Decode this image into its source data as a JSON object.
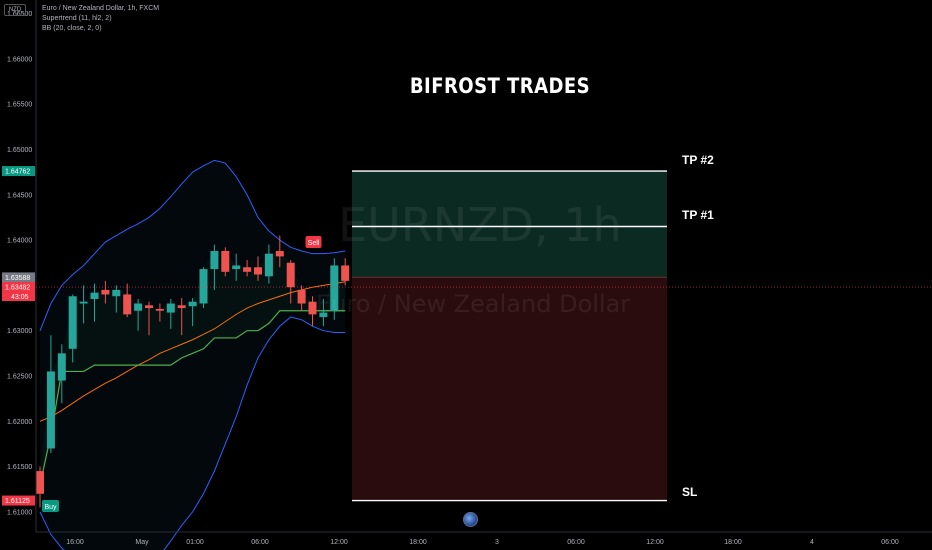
{
  "symbol_legend": {
    "title": "Euro / New Zealand Dollar, 1h, FXCM",
    "indicator1": "Supertrend (11, hl2, 2)",
    "indicator2": "BB (20, close, 2, 0)",
    "currency": "NZD"
  },
  "overlay": {
    "title": "BIFROST TRADES",
    "tp2_label": "TP #2",
    "tp1_label": "TP #1",
    "sl_label": "SL",
    "sell_label": "Sell",
    "buy_label": "Buy",
    "watermark_symbol": "EURNZD, 1h",
    "watermark_name": "Euro / New Zealand Dollar"
  },
  "colors": {
    "background": "#000000",
    "up_candle": "#26a69a",
    "down_candle": "#ef5350",
    "bollinger": "#2962ff",
    "bb_basis": "#ff6d00",
    "supertrend": "#4caf50",
    "target_zone": "#0b2a22",
    "stop_zone": "#2a0c0f"
  },
  "chart_data": {
    "type": "candlestick",
    "title": "Euro / New Zealand Dollar, 1h, FXCM",
    "ylim": [
      1.608,
      1.6665
    ],
    "y_ticks": [
      "1.66500",
      "1.66000",
      "1.65500",
      "1.65000",
      "1.64500",
      "1.64000",
      "1.63500",
      "1.63000",
      "1.62500",
      "1.62000",
      "1.61500",
      "1.61000"
    ],
    "x_ticks": [
      "16:00",
      "May",
      "01:00",
      "06:00",
      "12:00",
      "18:00",
      "3",
      "06:00",
      "12:00",
      "18:00",
      "4",
      "06:00"
    ],
    "price_labels": [
      {
        "value": 1.64762,
        "text": "1.64762",
        "color": "#089981"
      },
      {
        "value": 1.63588,
        "text": "1.63588",
        "color": "#787b86"
      },
      {
        "value": 1.63482,
        "text": "1.63482",
        "color": "#f23645"
      },
      {
        "value": 1.61125,
        "text": "1.61125",
        "color": "#f23645"
      }
    ],
    "countdown": "43:05",
    "candles": [
      {
        "o": 1.6145,
        "h": 1.615,
        "l": 1.6105,
        "c": 1.612
      },
      {
        "o": 1.617,
        "h": 1.6295,
        "l": 1.6165,
        "c": 1.6255
      },
      {
        "o": 1.6245,
        "h": 1.6285,
        "l": 1.622,
        "c": 1.6275
      },
      {
        "o": 1.628,
        "h": 1.634,
        "l": 1.6265,
        "c": 1.6338
      },
      {
        "o": 1.633,
        "h": 1.635,
        "l": 1.6308,
        "c": 1.6332
      },
      {
        "o": 1.6335,
        "h": 1.6352,
        "l": 1.631,
        "c": 1.6342
      },
      {
        "o": 1.6345,
        "h": 1.6355,
        "l": 1.633,
        "c": 1.634
      },
      {
        "o": 1.6338,
        "h": 1.635,
        "l": 1.632,
        "c": 1.6345
      },
      {
        "o": 1.634,
        "h": 1.6352,
        "l": 1.6315,
        "c": 1.6318
      },
      {
        "o": 1.6322,
        "h": 1.6335,
        "l": 1.63,
        "c": 1.633
      },
      {
        "o": 1.6328,
        "h": 1.6332,
        "l": 1.6295,
        "c": 1.6325
      },
      {
        "o": 1.6324,
        "h": 1.633,
        "l": 1.631,
        "c": 1.6322
      },
      {
        "o": 1.632,
        "h": 1.6335,
        "l": 1.6302,
        "c": 1.633
      },
      {
        "o": 1.6328,
        "h": 1.6336,
        "l": 1.6295,
        "c": 1.6325
      },
      {
        "o": 1.6327,
        "h": 1.6336,
        "l": 1.6305,
        "c": 1.6332
      },
      {
        "o": 1.633,
        "h": 1.637,
        "l": 1.6325,
        "c": 1.6368
      },
      {
        "o": 1.6368,
        "h": 1.6395,
        "l": 1.6345,
        "c": 1.6388
      },
      {
        "o": 1.6388,
        "h": 1.6392,
        "l": 1.636,
        "c": 1.6365
      },
      {
        "o": 1.6368,
        "h": 1.6385,
        "l": 1.6355,
        "c": 1.6372
      },
      {
        "o": 1.637,
        "h": 1.6378,
        "l": 1.636,
        "c": 1.6365
      },
      {
        "o": 1.637,
        "h": 1.6382,
        "l": 1.6355,
        "c": 1.6362
      },
      {
        "o": 1.636,
        "h": 1.6395,
        "l": 1.6352,
        "c": 1.6385
      },
      {
        "o": 1.6388,
        "h": 1.6405,
        "l": 1.637,
        "c": 1.6382
      },
      {
        "o": 1.6375,
        "h": 1.6378,
        "l": 1.633,
        "c": 1.6348
      },
      {
        "o": 1.6345,
        "h": 1.635,
        "l": 1.6322,
        "c": 1.633
      },
      {
        "o": 1.6332,
        "h": 1.6338,
        "l": 1.6305,
        "c": 1.6318
      },
      {
        "o": 1.6315,
        "h": 1.6335,
        "l": 1.6305,
        "c": 1.632
      },
      {
        "o": 1.6322,
        "h": 1.638,
        "l": 1.6312,
        "c": 1.6372
      },
      {
        "o": 1.6372,
        "h": 1.638,
        "l": 1.635,
        "c": 1.6355
      }
    ],
    "bollinger_upper": [
      1.63,
      1.633,
      1.635,
      1.6362,
      1.6372,
      1.6385,
      1.6398,
      1.6405,
      1.6412,
      1.6418,
      1.6425,
      1.6435,
      1.6448,
      1.6462,
      1.6475,
      1.6482,
      1.6488,
      1.6485,
      1.647,
      1.645,
      1.6425,
      1.641,
      1.64,
      1.6392,
      1.6388,
      1.6385,
      1.6385,
      1.6386,
      1.6388
    ],
    "bollinger_lower": [
      1.61,
      1.6075,
      1.606,
      1.605,
      1.6045,
      1.604,
      1.6035,
      1.6032,
      1.603,
      1.6032,
      1.604,
      1.6052,
      1.6068,
      1.6085,
      1.61,
      1.612,
      1.6145,
      1.6175,
      1.6205,
      1.624,
      1.627,
      1.629,
      1.6305,
      1.6315,
      1.6312,
      1.6305,
      1.63,
      1.6298,
      1.6298
    ],
    "bollinger_basis": [
      1.62,
      1.6205,
      1.6212,
      1.622,
      1.6228,
      1.6235,
      1.6242,
      1.6248,
      1.6255,
      1.6262,
      1.6268,
      1.6275,
      1.628,
      1.6285,
      1.629,
      1.6296,
      1.6302,
      1.631,
      1.6318,
      1.6325,
      1.633,
      1.6334,
      1.6338,
      1.6342,
      1.6345,
      1.6348,
      1.635,
      1.6352,
      1.6354
    ],
    "supertrend": [
      1.613,
      1.6185,
      1.6255,
      1.6255,
      1.6255,
      1.6262,
      1.6262,
      1.6262,
      1.6262,
      1.6262,
      1.6262,
      1.6262,
      1.6262,
      1.627,
      1.6275,
      1.628,
      1.6292,
      1.6292,
      1.6292,
      1.63,
      1.63,
      1.6308,
      1.6322,
      1.6322,
      1.6322,
      1.6322,
      1.6322,
      1.6322,
      1.6322
    ],
    "position": {
      "entry": 1.63588,
      "tp1": 1.6415,
      "tp2": 1.64762,
      "sl": 1.61125
    }
  }
}
